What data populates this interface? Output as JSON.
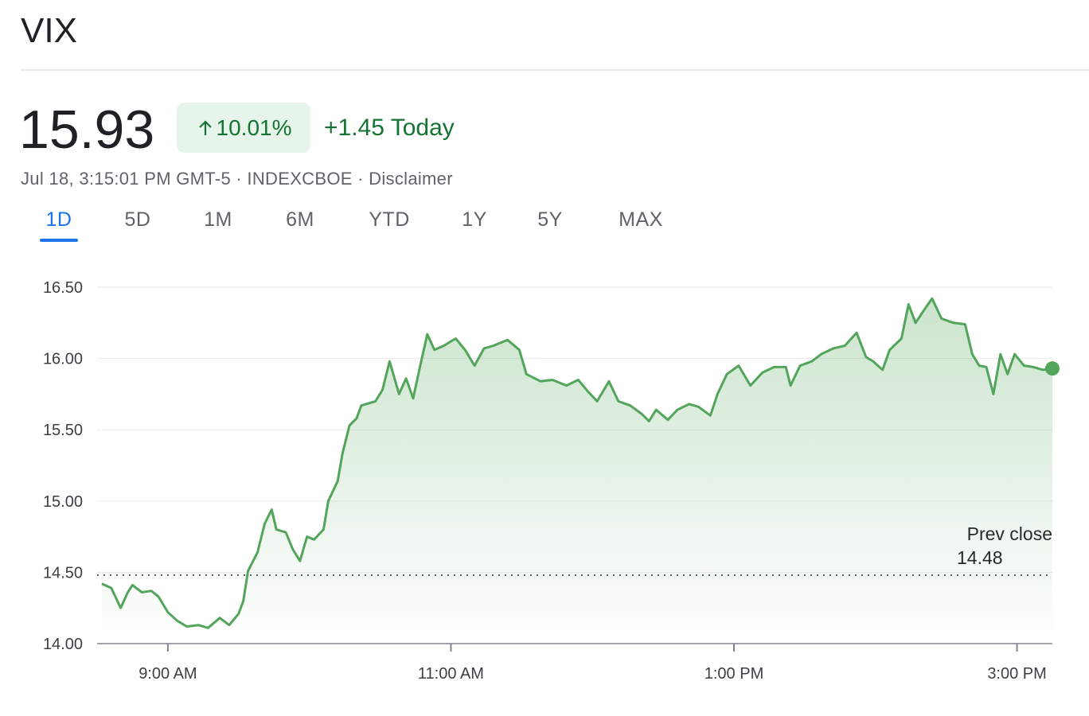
{
  "header": {
    "title": "VIX",
    "price": "15.93",
    "change_pct": "10.01%",
    "change_abs": "+1.45 Today",
    "meta": "Jul 18, 3:15:01 PM GMT-5 · INDEXCBOE · Disclaimer"
  },
  "tabs": {
    "items": [
      "1D",
      "5D",
      "1M",
      "6M",
      "YTD",
      "1Y",
      "5Y",
      "MAX"
    ],
    "active": 0
  },
  "chart_data": {
    "type": "line",
    "color": "#52a55a",
    "grid": true,
    "x": [
      "8:32 AM",
      "8:36 AM",
      "8:40 AM",
      "8:43 AM",
      "8:45 AM",
      "8:49 AM",
      "8:53 AM",
      "8:56 AM",
      "9:00 AM",
      "9:04 AM",
      "9:08 AM",
      "9:13 AM",
      "9:17 AM",
      "9:22 AM",
      "9:26 AM",
      "9:30 AM",
      "9:32 AM",
      "9:34 AM",
      "9:38 AM",
      "9:41 AM",
      "9:44 AM",
      "9:46 AM",
      "9:50 AM",
      "9:53 AM",
      "9:56 AM",
      "9:59 AM",
      "10:02 AM",
      "10:06 AM",
      "10:08 AM",
      "10:12 AM",
      "10:14 AM",
      "10:17 AM",
      "10:20 AM",
      "10:22 AM",
      "10:28 AM",
      "10:31 AM",
      "10:34 AM",
      "10:38 AM",
      "10:41 AM",
      "10:44 AM",
      "10:47 AM",
      "10:50 AM",
      "10:53 AM",
      "10:57 AM",
      "11:02 AM",
      "11:06 AM",
      "11:10 AM",
      "11:14 AM",
      "11:18 AM",
      "11:24 AM",
      "11:29 AM",
      "11:32 AM",
      "11:38 AM",
      "11:43 AM",
      "11:49 AM",
      "11:54 AM",
      "11:58 AM",
      "12:02 PM",
      "12:07 PM",
      "12:11 PM",
      "12:16 PM",
      "12:21 PM",
      "12:24 PM",
      "12:27 PM",
      "12:32 PM",
      "12:36 PM",
      "12:41 PM",
      "12:45 PM",
      "12:50 PM",
      "12:53 PM",
      "12:57 PM",
      "1:02 PM",
      "1:07 PM",
      "1:12 PM",
      "1:17 PM",
      "1:22 PM",
      "1:24 PM",
      "1:28 PM",
      "1:33 PM",
      "1:37 PM",
      "1:42 PM",
      "1:47 PM",
      "1:52 PM",
      "1:56 PM",
      "1:59 PM",
      "2:03 PM",
      "2:06 PM",
      "2:11 PM",
      "2:14 PM",
      "2:17 PM",
      "2:21 PM",
      "2:24 PM",
      "2:28 PM",
      "2:33 PM",
      "2:38 PM",
      "2:41 PM",
      "2:44 PM",
      "2:47 PM",
      "2:50 PM",
      "2:53 PM",
      "2:56 PM",
      "2:59 PM",
      "3:03 PM",
      "3:07 PM",
      "3:11 PM",
      "3:15 PM"
    ],
    "values": [
      14.42,
      14.39,
      14.25,
      14.36,
      14.41,
      14.36,
      14.37,
      14.33,
      14.22,
      14.16,
      14.12,
      14.13,
      14.11,
      14.18,
      14.13,
      14.21,
      14.3,
      14.51,
      14.64,
      14.84,
      14.94,
      14.8,
      14.78,
      14.66,
      14.58,
      14.75,
      14.73,
      14.8,
      15.0,
      15.14,
      15.33,
      15.53,
      15.58,
      15.67,
      15.7,
      15.78,
      15.98,
      15.75,
      15.86,
      15.72,
      15.95,
      16.17,
      16.06,
      16.09,
      16.14,
      16.06,
      15.95,
      16.07,
      16.09,
      16.13,
      16.06,
      15.89,
      15.84,
      15.85,
      15.81,
      15.85,
      15.77,
      15.7,
      15.84,
      15.7,
      15.67,
      15.61,
      15.56,
      15.64,
      15.57,
      15.64,
      15.68,
      15.66,
      15.6,
      15.75,
      15.89,
      15.95,
      15.81,
      15.9,
      15.94,
      15.94,
      15.81,
      15.95,
      15.98,
      16.03,
      16.07,
      16.09,
      16.18,
      16.01,
      15.98,
      15.92,
      16.06,
      16.14,
      16.38,
      16.25,
      16.35,
      16.42,
      16.28,
      16.25,
      16.24,
      16.03,
      15.95,
      15.94,
      15.75,
      16.03,
      15.89,
      16.03,
      15.95,
      15.94,
      15.92,
      15.93
    ],
    "xlim": [
      "8:30 AM",
      "3:15 PM"
    ],
    "xticks": [
      "9:00 AM",
      "11:00 AM",
      "1:00 PM",
      "3:00 PM"
    ],
    "ylim": [
      14,
      16.5
    ],
    "yticks": [
      {
        "value": 14,
        "label": "14.00"
      },
      {
        "value": 14.5,
        "label": "14.50"
      },
      {
        "value": 15,
        "label": "15.00"
      },
      {
        "value": 15.5,
        "label": "15.50"
      },
      {
        "value": 16,
        "label": "16.00"
      },
      {
        "value": 16.5,
        "label": "16.50"
      }
    ],
    "prev_close": {
      "label": "Prev close",
      "value": 14.48
    }
  }
}
